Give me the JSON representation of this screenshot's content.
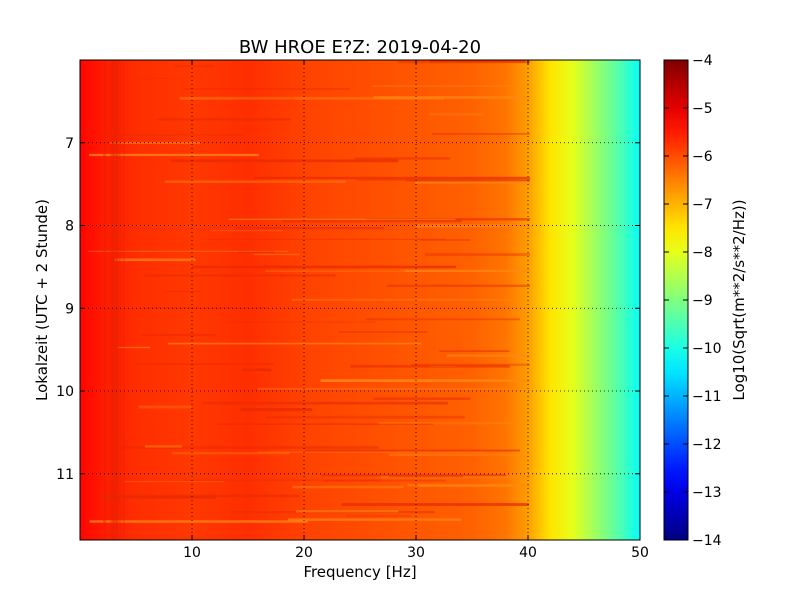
{
  "chart_data": {
    "type": "heatmap",
    "title": "BW HROE E?Z: 2019-04-20",
    "xlabel": "Frequency [Hz]",
    "ylabel": "Lokalzeit (UTC + 2 Stunde)",
    "colorbar_label": "Log10(Sqrt(m**2/s**2/Hz))",
    "xlim": [
      0,
      50
    ],
    "ylim": [
      6.0,
      11.8
    ],
    "y_inverted": true,
    "x_ticks": [
      10,
      20,
      30,
      40,
      50
    ],
    "y_ticks": [
      7,
      8,
      9,
      10,
      11
    ],
    "colorbar_range": [
      -14,
      -4
    ],
    "colorbar_ticks": [
      -4,
      -5,
      -6,
      -7,
      -8,
      -9,
      -10,
      -11,
      -12,
      -13,
      -14
    ],
    "colormap": "jet",
    "grid": true,
    "spectral_profile": {
      "frequency_hz": [
        0,
        2,
        5,
        10,
        15,
        20,
        25,
        30,
        35,
        38,
        40,
        42,
        44,
        46,
        48,
        50
      ],
      "log10_amplitude": [
        -5.3,
        -5.5,
        -5.7,
        -5.8,
        -5.7,
        -5.9,
        -6.0,
        -6.1,
        -6.2,
        -6.4,
        -6.8,
        -7.5,
        -8.0,
        -8.7,
        -9.4,
        -10.2
      ]
    }
  }
}
